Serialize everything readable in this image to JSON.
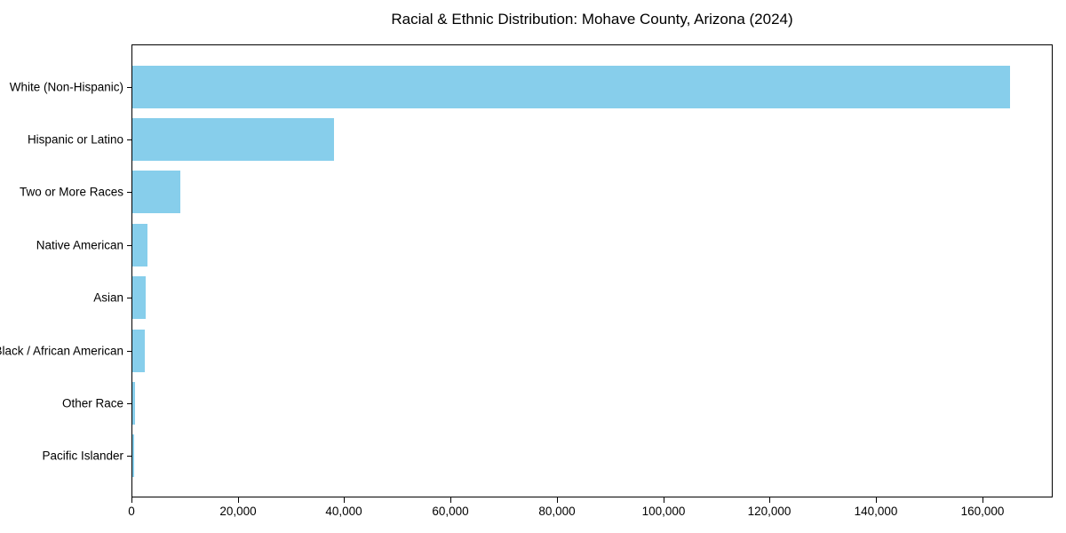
{
  "chart_data": {
    "type": "bar",
    "orientation": "horizontal",
    "title": "Racial & Ethnic Distribution: Mohave County, Arizona (2024)",
    "categories": [
      "White (Non-Hispanic)",
      "Hispanic or Latino",
      "Two or More Races",
      "Native American",
      "Asian",
      "Black / African American",
      "Other Race",
      "Pacific Islander"
    ],
    "values": [
      165000,
      38000,
      9000,
      2800,
      2500,
      2300,
      500,
      350
    ],
    "xlabel": "",
    "ylabel": "",
    "xlim": [
      0,
      173250
    ],
    "x_ticks": [
      0,
      20000,
      40000,
      60000,
      80000,
      100000,
      120000,
      140000,
      160000
    ],
    "x_tick_labels": [
      "0",
      "20,000",
      "40,000",
      "60,000",
      "80,000",
      "100,000",
      "120,000",
      "140,000",
      "160,000"
    ],
    "bar_color": "#87CEEB",
    "axis_color": "#000000",
    "grid": false,
    "legend": null
  }
}
